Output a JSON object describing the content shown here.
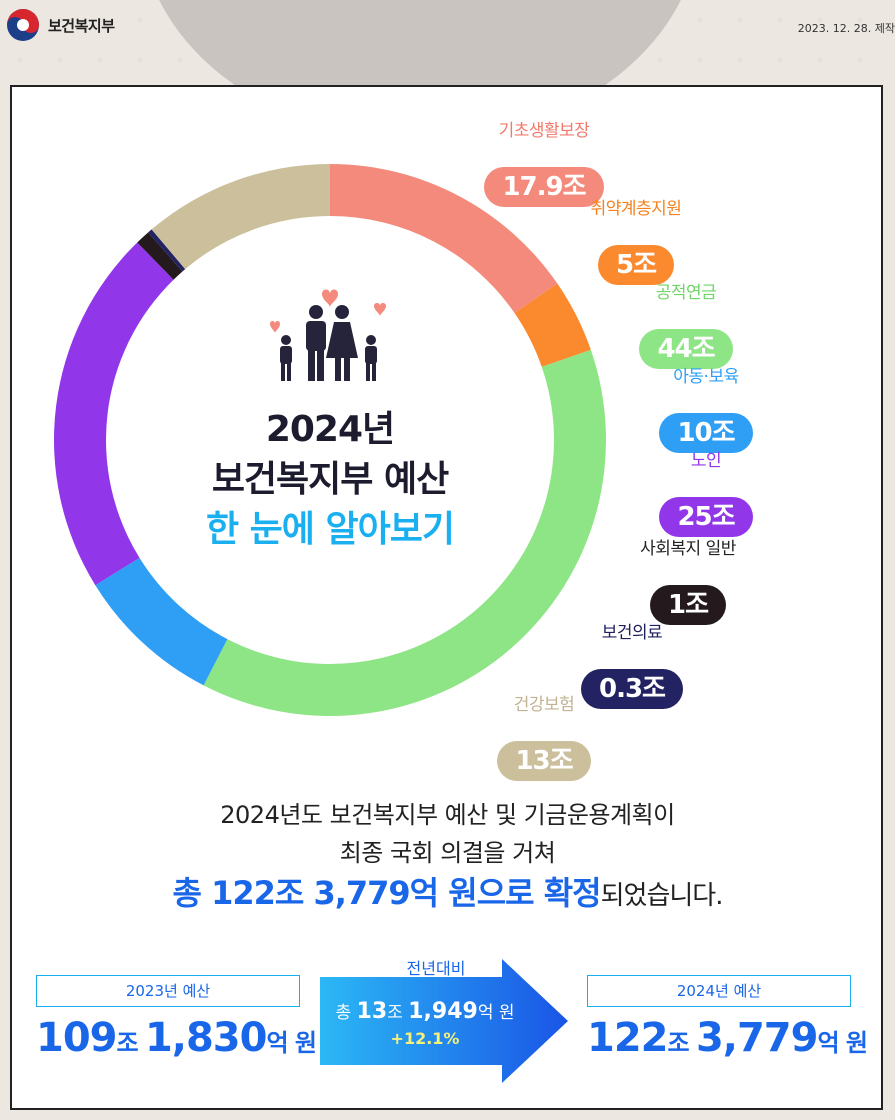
{
  "header": {
    "ministry": "보건복지부",
    "date": "2023. 12. 28. 제작"
  },
  "center": {
    "line1": "2024년",
    "line2": "보건복지부 예산",
    "line3": "한 눈에 알아보기"
  },
  "chart_data": {
    "type": "pie",
    "unit": "조",
    "categories": [
      "기초생활보장",
      "취약계층지원",
      "공적연금",
      "아동·보육",
      "노인",
      "사회복지 일반",
      "보건의료",
      "건강보험"
    ],
    "values": [
      17.9,
      5,
      44,
      10,
      25,
      1,
      0.3,
      13
    ],
    "labels": [
      "17.9조",
      "5조",
      "44조",
      "10조",
      "25조",
      "1조",
      "0.3조",
      "13조"
    ],
    "colors": [
      "#f48a7b",
      "#fb8a2e",
      "#8ee585",
      "#2e9ff5",
      "#9236ea",
      "#241a1e",
      "#232363",
      "#cbbf9c"
    ],
    "label_colors": [
      "#f27a6c",
      "#f5821e",
      "#6fd667",
      "#2e9ff5",
      "#9236ea",
      "#222222",
      "#1f1f5e",
      "#c1b391"
    ]
  },
  "summary": {
    "line1": "2024년도 보건복지부 예산 및 기금운용계획이",
    "line2": "최종 국회 의결을 거쳐",
    "line3_bold": "총 122조 3,779억 원으로 확정",
    "line3_rest": "되었습니다."
  },
  "budget_2023": {
    "label": "2023년 예산",
    "num1": "109",
    "unit1": "조 ",
    "num2": "1,830",
    "unit2": "억 원"
  },
  "budget_2024": {
    "label": "2024년 예산",
    "num1": "122",
    "unit1": "조 ",
    "num2": "3,779",
    "unit2": "억 원"
  },
  "change": {
    "title": "전년대비",
    "prefix": "총 ",
    "num1": "13",
    "unit1": "조 ",
    "num2": "1,949",
    "unit2": "억 원",
    "percent": "+12.1%"
  }
}
